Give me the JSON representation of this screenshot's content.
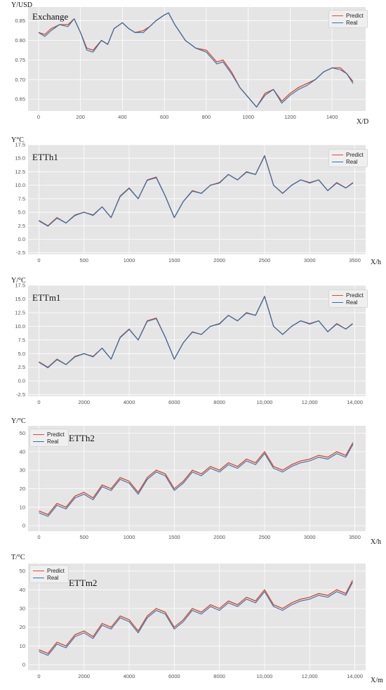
{
  "colors": {
    "predict": "#E24A33",
    "real": "#1F77B4",
    "background": "#E5E5E5",
    "grid": "#FFFFFF",
    "ticks": "#555555"
  },
  "chart_data": [
    {
      "type": "line",
      "name": "Exchange",
      "ylabel": "Y/USD",
      "xlabel": "X/D",
      "legend": "top-right",
      "grid": true,
      "xlim": [
        -50,
        1560
      ],
      "ylim": [
        0.62,
        0.885
      ],
      "xticks": [
        0,
        200,
        400,
        600,
        800,
        1000,
        1200,
        1400
      ],
      "xtick_labels": [
        "0",
        "200",
        "400",
        "600",
        "800",
        "1000",
        "1200",
        "1400"
      ],
      "yticks": [
        0.65,
        0.7,
        0.75,
        0.8,
        0.85
      ],
      "ytick_labels": [
        "0.65",
        "0.70",
        "0.75",
        "0.80",
        "0.85"
      ],
      "x": [
        0,
        30,
        60,
        100,
        140,
        170,
        200,
        230,
        260,
        300,
        330,
        360,
        400,
        430,
        460,
        500,
        530,
        560,
        600,
        620,
        650,
        700,
        750,
        800,
        850,
        880,
        920,
        960,
        1000,
        1040,
        1080,
        1120,
        1160,
        1200,
        1240,
        1280,
        1320,
        1360,
        1400,
        1440,
        1470,
        1500
      ],
      "series": [
        {
          "name": "Predict",
          "values": [
            0.82,
            0.815,
            0.83,
            0.84,
            0.84,
            0.855,
            0.82,
            0.78,
            0.775,
            0.8,
            0.79,
            0.83,
            0.845,
            0.83,
            0.82,
            0.825,
            0.835,
            0.85,
            0.865,
            0.87,
            0.84,
            0.8,
            0.78,
            0.775,
            0.745,
            0.75,
            0.72,
            0.68,
            0.655,
            0.63,
            0.665,
            0.675,
            0.645,
            0.665,
            0.68,
            0.69,
            0.7,
            0.72,
            0.73,
            0.73,
            0.715,
            0.695
          ]
        },
        {
          "name": "Real",
          "values": [
            0.82,
            0.81,
            0.825,
            0.84,
            0.835,
            0.855,
            0.82,
            0.775,
            0.77,
            0.8,
            0.79,
            0.83,
            0.845,
            0.83,
            0.82,
            0.82,
            0.835,
            0.85,
            0.865,
            0.87,
            0.84,
            0.8,
            0.78,
            0.77,
            0.74,
            0.745,
            0.715,
            0.68,
            0.655,
            0.63,
            0.66,
            0.675,
            0.64,
            0.66,
            0.675,
            0.685,
            0.7,
            0.72,
            0.73,
            0.725,
            0.715,
            0.69
          ]
        }
      ]
    },
    {
      "type": "line",
      "name": "ETTh1",
      "ylabel": "Y°C",
      "xlabel": "X/h",
      "legend": "top-right",
      "grid": true,
      "xlim": [
        -120,
        3620
      ],
      "ylim": [
        -2.8,
        17.5
      ],
      "xticks": [
        0,
        500,
        1000,
        1500,
        2000,
        2500,
        3000,
        3500
      ],
      "xtick_labels": [
        "0",
        "500",
        "1000",
        "1500",
        "2000",
        "2500",
        "3000",
        "3500"
      ],
      "yticks": [
        -2.5,
        0.0,
        2.5,
        5.0,
        7.5,
        10.0,
        12.5,
        15.0,
        17.5
      ],
      "ytick_labels": [
        "-2.5",
        "0.0",
        "2.5",
        "5.0",
        "7.5",
        "10.0",
        "12.5",
        "15.0",
        "17.5"
      ],
      "x": [
        0,
        100,
        200,
        300,
        400,
        500,
        600,
        700,
        800,
        900,
        1000,
        1100,
        1200,
        1300,
        1400,
        1500,
        1600,
        1700,
        1800,
        1900,
        2000,
        2100,
        2200,
        2300,
        2400,
        2500,
        2600,
        2700,
        2800,
        2900,
        3000,
        3100,
        3200,
        3300,
        3400,
        3480
      ],
      "series": [
        {
          "name": "Predict",
          "values": [
            3.5,
            2.5,
            4.0,
            3.0,
            4.5,
            5.0,
            4.5,
            6.0,
            4.0,
            8.0,
            9.5,
            7.5,
            11.0,
            11.5,
            8.0,
            4.0,
            7.0,
            9.0,
            8.5,
            10.0,
            10.5,
            12.0,
            11.0,
            12.5,
            12.0,
            15.5,
            10.0,
            8.5,
            10.0,
            11.0,
            10.5,
            11.0,
            9.0,
            10.5,
            9.5,
            10.5
          ]
        },
        {
          "name": "Real",
          "values": [
            3.4,
            2.4,
            3.9,
            3.0,
            4.4,
            5.0,
            4.4,
            6.0,
            4.0,
            7.9,
            9.4,
            7.5,
            10.9,
            11.4,
            8.0,
            4.0,
            7.0,
            8.9,
            8.5,
            10.0,
            10.4,
            12.0,
            11.0,
            12.4,
            12.0,
            15.4,
            10.0,
            8.5,
            10.0,
            11.0,
            10.4,
            11.0,
            9.0,
            10.4,
            9.5,
            10.4
          ]
        }
      ]
    },
    {
      "type": "line",
      "name": "ETTm1",
      "ylabel": "Y/°C",
      "xlabel": "",
      "legend": "top-right",
      "grid": true,
      "xlim": [
        -480,
        14480
      ],
      "ylim": [
        -2.8,
        17.5
      ],
      "xticks": [
        0,
        2000,
        4000,
        6000,
        8000,
        10000,
        12000,
        14000
      ],
      "xtick_labels": [
        "0",
        "2000",
        "4000",
        "6000",
        "8000",
        "10,000",
        "12,000",
        "14,000"
      ],
      "yticks": [
        -2.5,
        0.0,
        2.5,
        5.0,
        7.5,
        10.0,
        12.5,
        15.0,
        17.5
      ],
      "ytick_labels": [
        "-2.5",
        "0.0",
        "2.5",
        "5.0",
        "7.5",
        "10.0",
        "12.5",
        "15.0",
        "17.5"
      ],
      "x": [
        0,
        400,
        800,
        1200,
        1600,
        2000,
        2400,
        2800,
        3200,
        3600,
        4000,
        4400,
        4800,
        5200,
        5600,
        6000,
        6400,
        6800,
        7200,
        7600,
        8000,
        8400,
        8800,
        9200,
        9600,
        10000,
        10400,
        10800,
        11200,
        11600,
        12000,
        12400,
        12800,
        13200,
        13600,
        13900
      ],
      "series": [
        {
          "name": "Predict",
          "values": [
            3.5,
            2.5,
            4.0,
            3.0,
            4.5,
            5.0,
            4.5,
            6.0,
            4.0,
            8.0,
            9.5,
            7.5,
            11.0,
            11.5,
            8.0,
            4.0,
            7.0,
            9.0,
            8.5,
            10.0,
            10.5,
            12.0,
            11.0,
            12.5,
            12.0,
            15.5,
            10.0,
            8.5,
            10.0,
            11.0,
            10.5,
            11.0,
            9.0,
            10.5,
            9.5,
            10.5
          ]
        },
        {
          "name": "Real",
          "values": [
            3.4,
            2.4,
            3.9,
            3.0,
            4.4,
            5.0,
            4.4,
            6.0,
            4.0,
            7.9,
            9.4,
            7.5,
            10.9,
            11.4,
            8.0,
            4.0,
            7.0,
            8.9,
            8.5,
            10.0,
            10.4,
            12.0,
            11.0,
            12.4,
            12.0,
            15.4,
            10.0,
            8.5,
            10.0,
            11.0,
            10.4,
            11.0,
            9.0,
            10.4,
            9.5,
            10.4
          ]
        }
      ]
    },
    {
      "type": "line",
      "name": "ETTh2",
      "ylabel": "Y/°C",
      "xlabel": "X/h",
      "legend": "top-left",
      "grid": true,
      "xlim": [
        -120,
        3620
      ],
      "ylim": [
        -3,
        54
      ],
      "xticks": [
        0,
        500,
        1000,
        1500,
        2000,
        2500,
        3000,
        3500
      ],
      "xtick_labels": [
        "0",
        "500",
        "1000",
        "1500",
        "2000",
        "2500",
        "3000",
        "3500"
      ],
      "yticks": [
        0,
        10,
        20,
        30,
        40,
        50
      ],
      "ytick_labels": [
        "0",
        "10",
        "20",
        "30",
        "40",
        "50"
      ],
      "x": [
        0,
        100,
        200,
        300,
        400,
        500,
        600,
        700,
        800,
        900,
        1000,
        1100,
        1200,
        1300,
        1400,
        1500,
        1600,
        1700,
        1800,
        1900,
        2000,
        2100,
        2200,
        2300,
        2400,
        2500,
        2600,
        2700,
        2800,
        2900,
        3000,
        3100,
        3200,
        3300,
        3400,
        3480
      ],
      "series": [
        {
          "name": "Predict",
          "values": [
            8,
            6,
            12,
            10,
            16,
            18,
            15,
            22,
            20,
            26,
            24,
            18,
            26,
            30,
            28,
            20,
            24,
            30,
            28,
            32,
            30,
            34,
            32,
            36,
            34,
            40,
            32,
            30,
            33,
            35,
            36,
            38,
            37,
            40,
            38,
            45
          ]
        },
        {
          "name": "Real",
          "values": [
            7,
            5,
            11,
            9,
            15,
            17,
            14,
            21,
            19,
            25,
            23,
            17,
            25,
            29,
            27,
            19,
            23,
            29,
            27,
            31,
            29,
            33,
            31,
            35,
            33,
            39,
            31,
            29,
            32,
            34,
            35,
            37,
            36,
            39,
            37,
            44
          ]
        }
      ]
    },
    {
      "type": "line",
      "name": "ETTm2",
      "ylabel": "T/°C",
      "xlabel": "X/m",
      "legend": "top-left",
      "grid": true,
      "xlim": [
        -480,
        14480
      ],
      "ylim": [
        -3,
        54
      ],
      "xticks": [
        0,
        2000,
        4000,
        6000,
        8000,
        10000,
        12000,
        14000
      ],
      "xtick_labels": [
        "0",
        "2000",
        "4000",
        "6000",
        "8000",
        "10,000",
        "12,000",
        "14,000"
      ],
      "yticks": [
        0,
        10,
        20,
        30,
        40,
        50
      ],
      "ytick_labels": [
        "0",
        "10",
        "20",
        "30",
        "40",
        "50"
      ],
      "x": [
        0,
        400,
        800,
        1200,
        1600,
        2000,
        2400,
        2800,
        3200,
        3600,
        4000,
        4400,
        4800,
        5200,
        5600,
        6000,
        6400,
        6800,
        7200,
        7600,
        8000,
        8400,
        8800,
        9200,
        9600,
        10000,
        10400,
        10800,
        11200,
        11600,
        12000,
        12400,
        12800,
        13200,
        13600,
        13900
      ],
      "series": [
        {
          "name": "Predict",
          "values": [
            8,
            6,
            12,
            10,
            16,
            18,
            15,
            22,
            20,
            26,
            24,
            18,
            26,
            30,
            28,
            20,
            24,
            30,
            28,
            32,
            30,
            34,
            32,
            36,
            34,
            40,
            32,
            30,
            33,
            35,
            36,
            38,
            37,
            40,
            38,
            45
          ]
        },
        {
          "name": "Real",
          "values": [
            7,
            5,
            11,
            9,
            15,
            17,
            14,
            21,
            19,
            25,
            23,
            17,
            25,
            29,
            27,
            19,
            23,
            29,
            27,
            31,
            29,
            33,
            31,
            35,
            33,
            39,
            31,
            29,
            32,
            34,
            35,
            37,
            36,
            39,
            37,
            44
          ]
        }
      ]
    }
  ]
}
